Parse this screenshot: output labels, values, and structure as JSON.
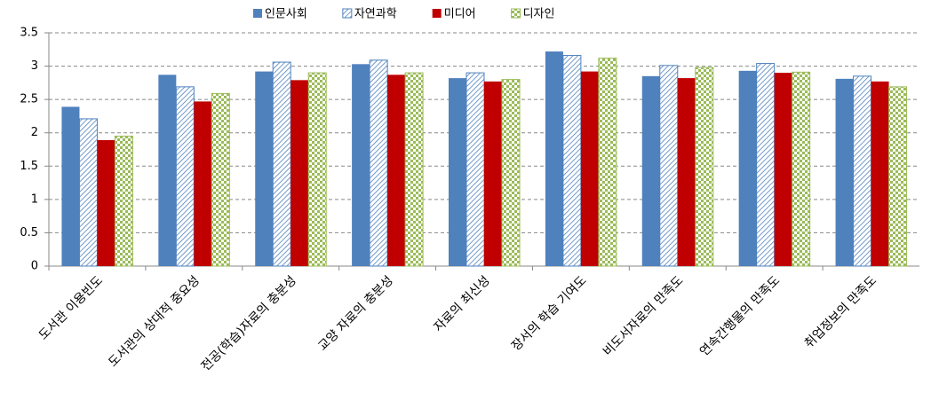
{
  "chart_data": {
    "type": "bar",
    "categories": [
      "도서관 이용빈도",
      "도서관의 상대적 중요성",
      "전공(학습)자료의 충분성",
      "교양 자료의 충분성",
      "자료의 최신성",
      "장서의 학습 기여도",
      "비도서자료의 만족도",
      "연속간행물의 만족도",
      "취업정보의 만족도"
    ],
    "series": [
      {
        "name": "인문사회",
        "color": "#4f81bd",
        "pattern": "solid",
        "values": [
          2.39,
          2.87,
          2.92,
          3.03,
          2.82,
          3.22,
          2.85,
          2.93,
          2.81
        ]
      },
      {
        "name": "자연과학",
        "color": "#4f81bd",
        "pattern": "hatch",
        "values": [
          2.21,
          2.69,
          3.06,
          3.09,
          2.9,
          3.16,
          3.01,
          3.04,
          2.85
        ]
      },
      {
        "name": "미디어",
        "color": "#c00000",
        "pattern": "solid",
        "values": [
          1.89,
          2.47,
          2.79,
          2.87,
          2.77,
          2.92,
          2.82,
          2.9,
          2.77
        ]
      },
      {
        "name": "디자인",
        "color": "#9bbb59",
        "pattern": "checker",
        "values": [
          1.95,
          2.59,
          2.9,
          2.9,
          2.8,
          3.12,
          2.98,
          2.91,
          2.69
        ]
      }
    ],
    "ylim": [
      0,
      3.5
    ],
    "yticks": [
      0,
      0.5,
      1,
      1.5,
      2,
      2.5,
      3,
      3.5
    ],
    "grid": true,
    "legend": "top"
  }
}
